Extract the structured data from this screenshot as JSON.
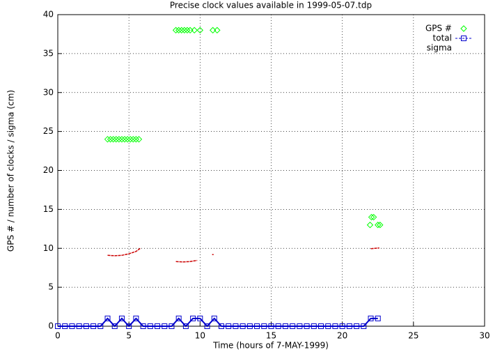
{
  "chart_data": {
    "type": "scatter",
    "title": "Precise clock values available in 1999-05-07.tdp",
    "xlabel": "Time (hours of 7-MAY-1999)",
    "ylabel": "GPS # / number of clocks / sigma (cm)",
    "xlim": [
      0,
      30
    ],
    "ylim": [
      0,
      40
    ],
    "xticks": [
      0,
      5,
      10,
      15,
      20,
      25,
      30
    ],
    "yticks": [
      0,
      5,
      10,
      15,
      20,
      25,
      30,
      35,
      40
    ],
    "grid": true,
    "legend": "top-right",
    "series": [
      {
        "name": "GPS #",
        "color": "#00ff00",
        "style": "points",
        "x": [
          3.5,
          3.7,
          3.9,
          4.1,
          4.3,
          4.5,
          4.7,
          4.9,
          5.1,
          5.3,
          5.5,
          5.7,
          8.3,
          8.5,
          8.7,
          8.9,
          9.1,
          9.3,
          9.6,
          10.0,
          10.9,
          11.2,
          22.05,
          22.2,
          21.95,
          22.5,
          22.65
        ],
        "values": [
          24,
          24,
          24,
          24,
          24,
          24,
          24,
          24,
          24,
          24,
          24,
          24,
          38,
          38,
          38,
          38,
          38,
          38,
          38,
          38,
          38,
          38,
          14,
          14,
          13,
          13,
          13
        ]
      },
      {
        "name": "total",
        "color": "#0000cc",
        "style": "linespoints",
        "x": [
          0,
          0.5,
          1,
          1.5,
          2,
          2.5,
          3,
          3.5,
          4,
          4.5,
          5,
          5.5,
          6,
          6.5,
          7,
          7.5,
          8,
          8.5,
          9,
          9.5,
          10,
          10.5,
          11,
          11.5,
          12,
          12.5,
          13,
          13.5,
          14,
          14.5,
          15,
          15.5,
          16,
          16.5,
          17,
          17.5,
          18,
          18.5,
          19,
          19.5,
          20,
          20.5,
          21,
          21.5,
          22,
          22.5
        ],
        "values": [
          0,
          0,
          0,
          0,
          0,
          0,
          0,
          1,
          0,
          1,
          0,
          1,
          0,
          0,
          0,
          0,
          0,
          1,
          0,
          1,
          1,
          0,
          1,
          0,
          0,
          0,
          0,
          0,
          0,
          0,
          0,
          0,
          0,
          0,
          0,
          0,
          0,
          0,
          0,
          0,
          0,
          0,
          0,
          0,
          1,
          1
        ]
      },
      {
        "name": "sigma",
        "color": "#cc0000",
        "style": "line",
        "x": [
          3.5,
          4.0,
          4.5,
          5.0,
          5.5,
          5.8,
          7.0,
          8.3,
          8.8,
          9.3,
          9.8,
          10.3,
          10.85,
          10.95,
          16.0,
          22.0,
          22.3,
          22.6
        ],
        "values": [
          9.1,
          9.05,
          9.1,
          9.3,
          9.6,
          10.0,
          null,
          8.3,
          8.25,
          8.3,
          8.45,
          null,
          9.2,
          9.2,
          null,
          9.95,
          10.0,
          10.05
        ]
      }
    ]
  }
}
